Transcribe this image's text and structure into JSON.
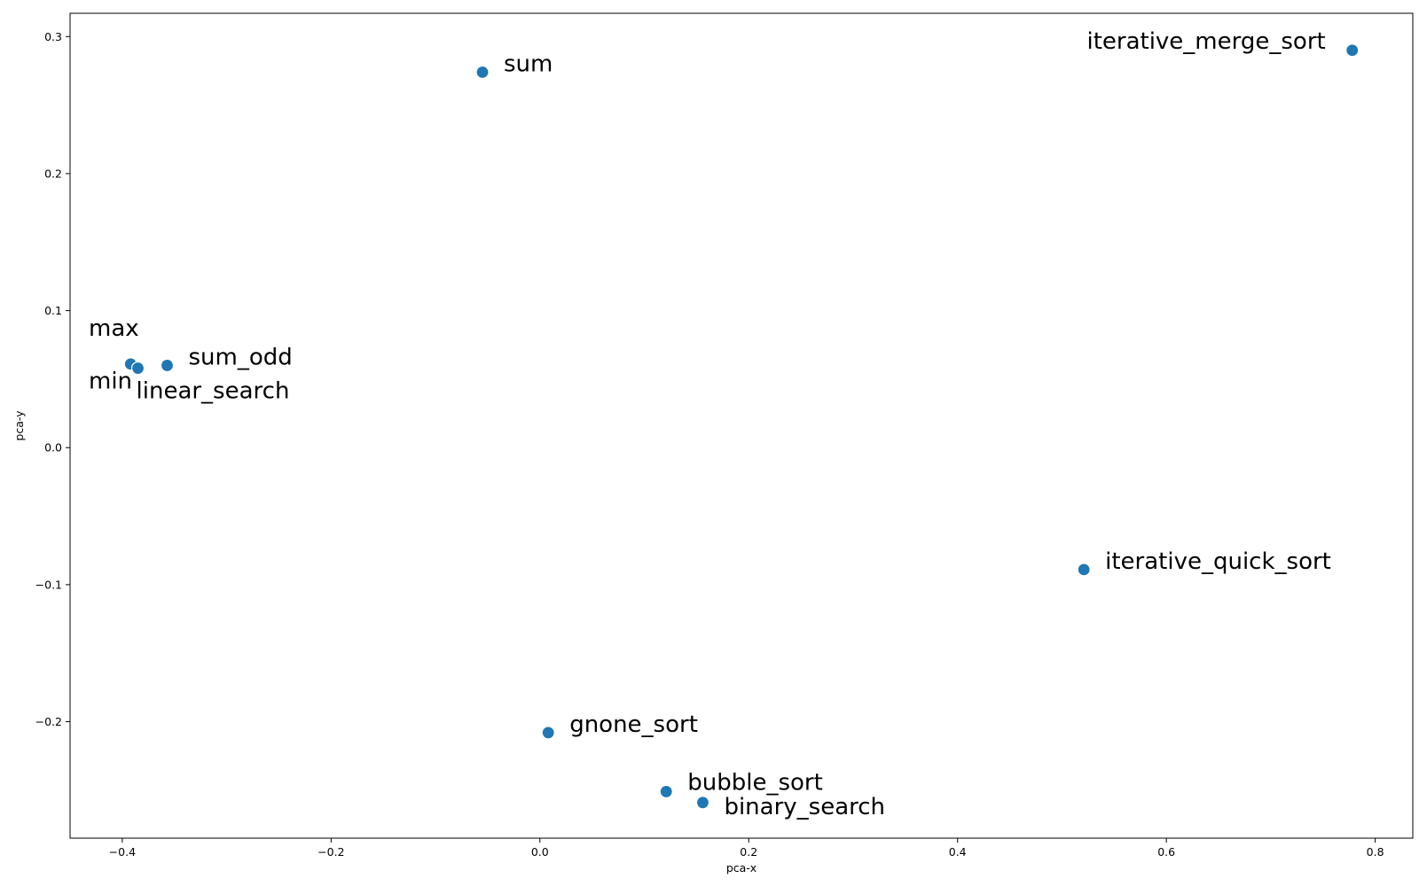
{
  "chart_data": {
    "type": "scatter",
    "title": "",
    "xlabel": "pca-x",
    "ylabel": "pca-y",
    "xlim": [
      -0.45,
      0.836
    ],
    "ylim": [
      -0.285,
      0.317
    ],
    "xticks": [
      -0.4,
      -0.2,
      0.0,
      0.2,
      0.4,
      0.6,
      0.8
    ],
    "yticks": [
      -0.2,
      -0.1,
      0.0,
      0.1,
      0.2,
      0.3
    ],
    "xtick_labels": [
      "−0.4",
      "−0.2",
      "0.0",
      "0.2",
      "0.4",
      "0.6",
      "0.8"
    ],
    "ytick_labels": [
      "−0.2",
      "−0.1",
      "0.0",
      "0.1",
      "0.2",
      "0.3"
    ],
    "grid": false,
    "marker_color": "#1f77b4",
    "points": [
      {
        "label": "sum",
        "x": -0.055,
        "y": 0.274,
        "label_pos": "right"
      },
      {
        "label": "iterative_merge_sort",
        "x": 0.778,
        "y": 0.29,
        "label_pos": "left"
      },
      {
        "label": "max",
        "x": -0.392,
        "y": 0.061,
        "label_pos": "upper-left"
      },
      {
        "label": "min",
        "x": -0.385,
        "y": 0.058,
        "label_pos": "left"
      },
      {
        "label": "sum_odd",
        "x": -0.357,
        "y": 0.06,
        "label_pos": "right"
      },
      {
        "label": "linear_search",
        "x": -0.385,
        "y": 0.058,
        "label_pos": "below-right"
      },
      {
        "label": "iterative_quick_sort",
        "x": 0.521,
        "y": -0.089,
        "label_pos": "right"
      },
      {
        "label": "gnone_sort",
        "x": 0.008,
        "y": -0.208,
        "label_pos": "right"
      },
      {
        "label": "bubble_sort",
        "x": 0.121,
        "y": -0.251,
        "label_pos": "upper-right"
      },
      {
        "label": "binary_search",
        "x": 0.156,
        "y": -0.259,
        "label_pos": "right"
      }
    ]
  }
}
